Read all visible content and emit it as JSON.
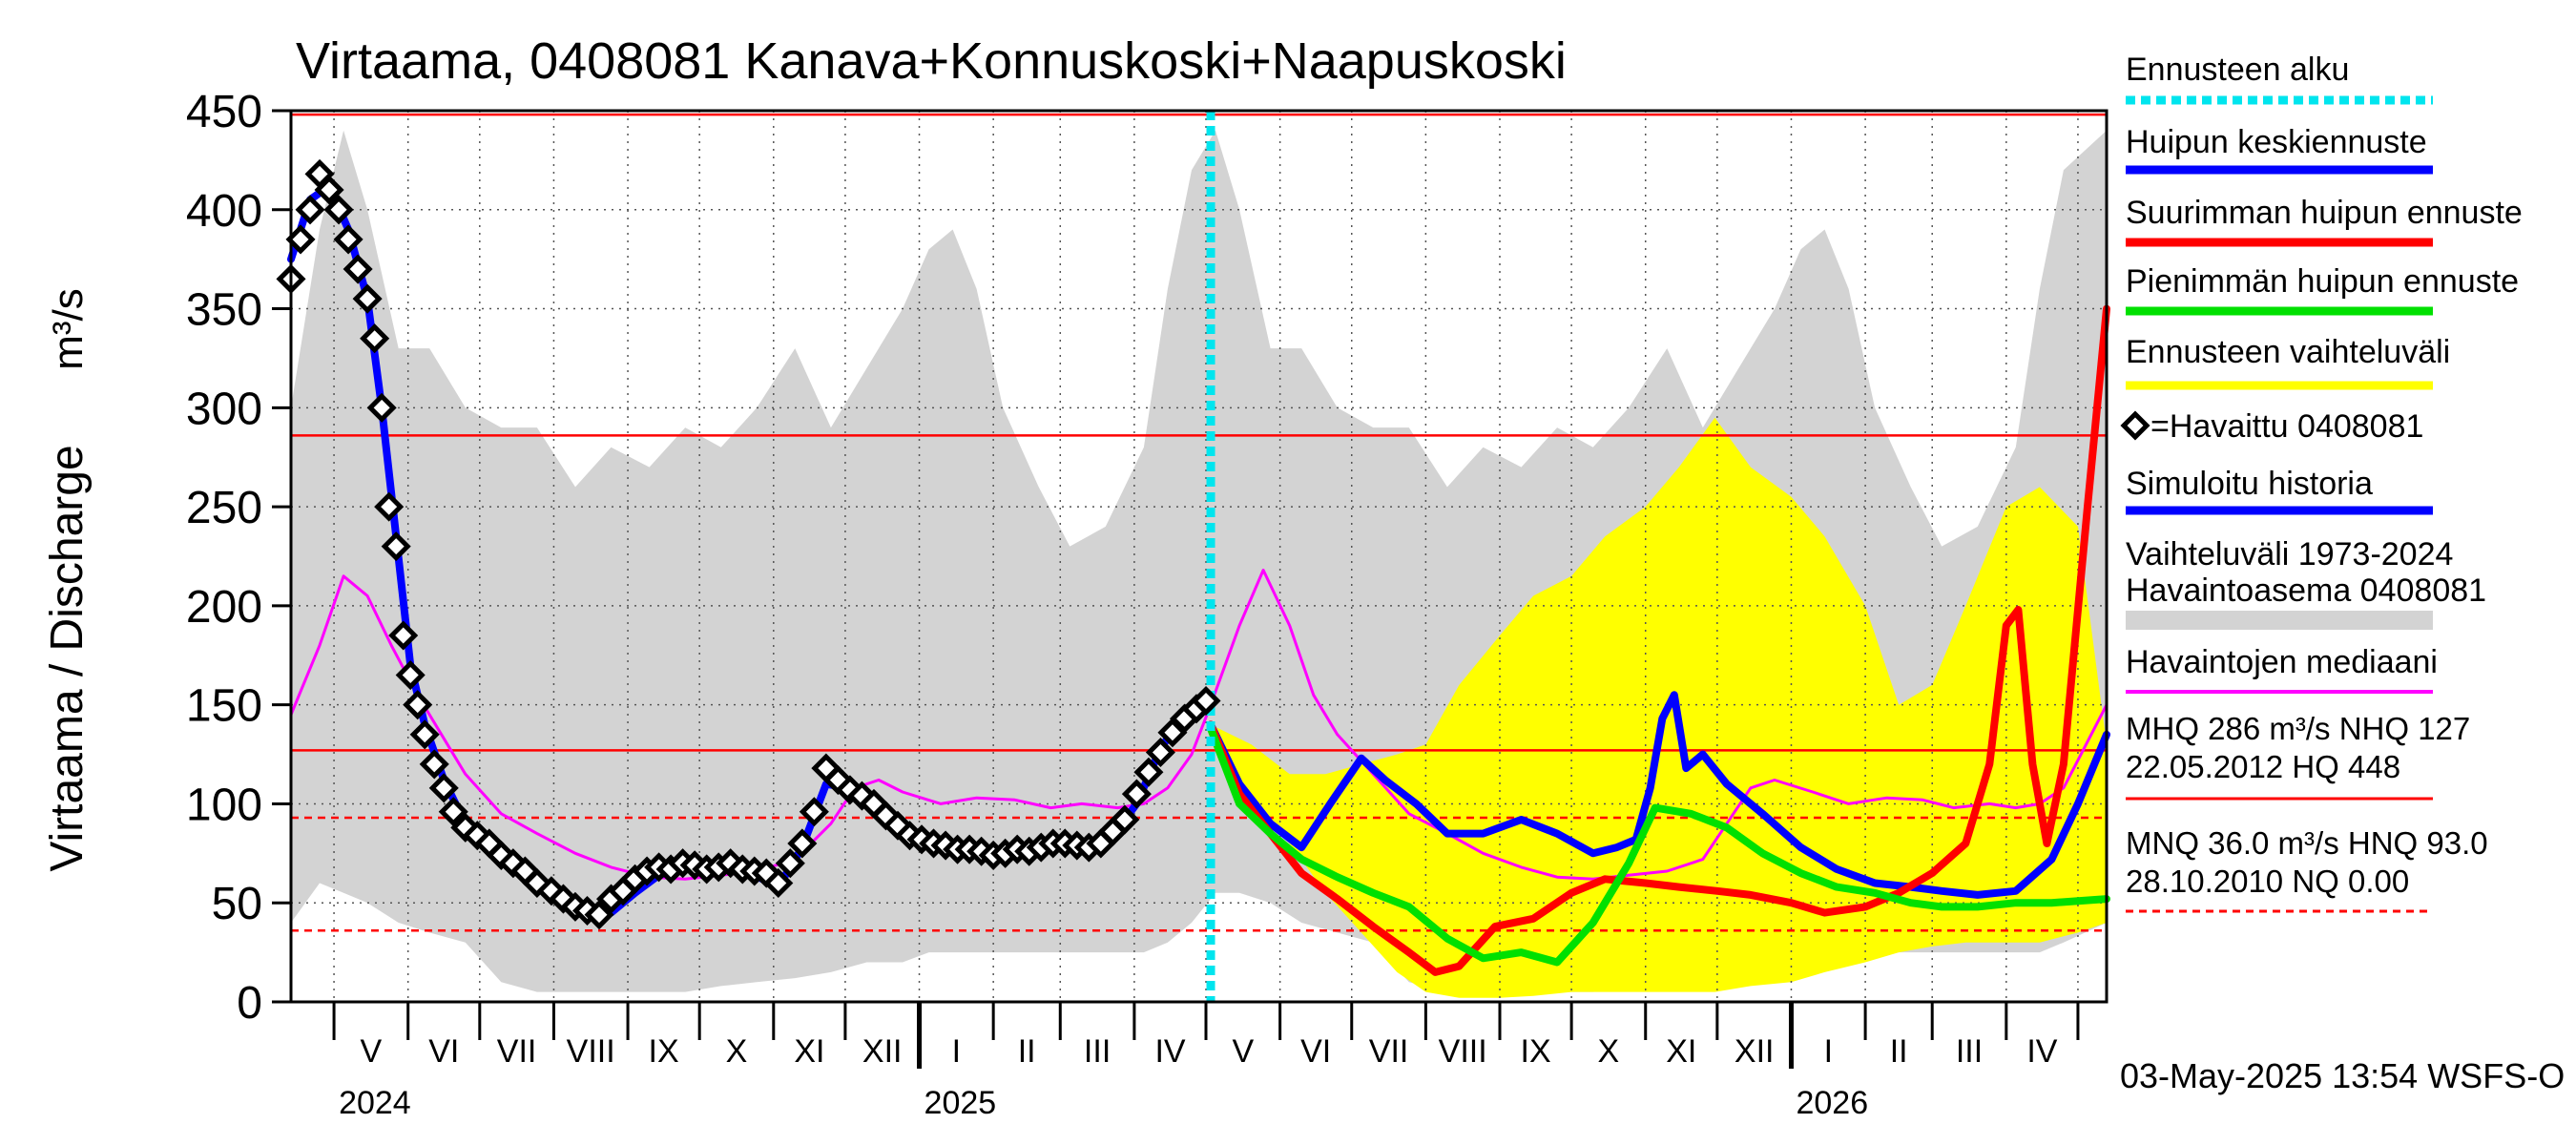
{
  "chart_data": {
    "type": "line",
    "title": "Virtaama, 0408081 Kanava+Konnuskoski+Naapuskoski",
    "ylabel": "Virtaama / Discharge",
    "yunit": "m³/s",
    "ylim": [
      0,
      450
    ],
    "yticks": [
      0,
      50,
      100,
      150,
      200,
      250,
      300,
      350,
      400,
      450
    ],
    "xlim": [
      "2024-04-13",
      "2026-05-13"
    ],
    "forecast_start": "2025-05-03",
    "month_labels": [
      "V",
      "VI",
      "VII",
      "VIII",
      "IX",
      "X",
      "XI",
      "XII",
      "I",
      "II",
      "III",
      "IV",
      "V",
      "VI",
      "VII",
      "VIII",
      "IX",
      "X",
      "XI",
      "XII",
      "I",
      "II",
      "III",
      "IV"
    ],
    "year_labels": [
      "2024",
      "2025",
      "2026"
    ],
    "timestamp": "03-May-2025 13:54 WSFS-O",
    "reference_lines": {
      "solid": [
        448,
        286,
        127
      ],
      "dashed": [
        93,
        36,
        0
      ]
    },
    "stats": {
      "line1": "MHQ  286 m³/s NHQ  127",
      "line2": "22.05.2012 HQ  448",
      "line3": "MNQ 36.0 m³/s HNQ 93.0",
      "line4": "28.10.2010 NQ 0.00"
    },
    "legend": [
      {
        "label": "Ennusteen alku",
        "color": "#00e5ee",
        "style": "dotted"
      },
      {
        "label": "Huipun keskiennuste",
        "color": "#0000ff",
        "style": "solid"
      },
      {
        "label": "Suurimman huipun ennuste",
        "color": "#ff0000",
        "style": "solid"
      },
      {
        "label": "Pienimmän huipun ennuste",
        "color": "#00e000",
        "style": "solid"
      },
      {
        "label": "Ennusteen vaihteluväli",
        "color": "#ffff00",
        "style": "solid"
      },
      {
        "label": "=Havaittu 0408081",
        "color": "#000000",
        "style": "diamond"
      },
      {
        "label": "Simuloitu historia",
        "color": "#0000ff",
        "style": "solid"
      },
      {
        "label": "Vaihteluväli 1973-2024",
        "label2": " Havaintoasema 0408081",
        "color": "#d3d3d3",
        "style": "band"
      },
      {
        "label": "Havaintojen mediaani",
        "color": "#ff00ff",
        "style": "solid"
      }
    ],
    "series": [
      {
        "name": "Vaihteluväli 1973-2024",
        "kind": "band",
        "color": "#d3d3d3",
        "x": [
          "2024-04-13",
          "2024-04-25",
          "2024-05-05",
          "2024-05-15",
          "2024-05-28",
          "2024-06-10",
          "2024-06-25",
          "2024-07-10",
          "2024-07-25",
          "2024-08-10",
          "2024-08-25",
          "2024-09-10",
          "2024-09-25",
          "2024-10-10",
          "2024-10-25",
          "2024-11-10",
          "2024-11-25",
          "2024-12-10",
          "2024-12-25",
          "2025-01-05",
          "2025-01-15",
          "2025-01-25",
          "2025-02-05",
          "2025-02-20",
          "2025-03-05",
          "2025-03-20",
          "2025-04-05",
          "2025-04-15",
          "2025-04-25",
          "2025-05-05",
          "2025-05-15",
          "2025-05-28",
          "2025-06-10",
          "2025-06-25",
          "2025-07-10",
          "2025-07-25",
          "2025-08-10",
          "2025-08-25",
          "2025-09-10",
          "2025-09-25",
          "2025-10-10",
          "2025-10-25",
          "2025-11-10",
          "2025-11-25",
          "2025-12-10",
          "2025-12-25",
          "2026-01-05",
          "2026-01-15",
          "2026-01-25",
          "2026-02-05",
          "2026-02-20",
          "2026-03-05",
          "2026-03-20",
          "2026-04-05",
          "2026-04-15",
          "2026-04-25",
          "2026-05-13"
        ],
        "low": [
          40,
          60,
          55,
          50,
          40,
          35,
          30,
          10,
          5,
          5,
          5,
          5,
          5,
          8,
          10,
          12,
          15,
          20,
          20,
          25,
          25,
          25,
          25,
          25,
          25,
          25,
          25,
          30,
          40,
          55,
          55,
          50,
          40,
          35,
          30,
          10,
          5,
          5,
          5,
          5,
          5,
          8,
          10,
          12,
          15,
          20,
          20,
          25,
          25,
          25,
          25,
          25,
          25,
          25,
          25,
          30,
          40
        ],
        "high": [
          300,
          390,
          440,
          400,
          330,
          330,
          300,
          290,
          290,
          260,
          280,
          270,
          290,
          280,
          300,
          330,
          290,
          320,
          350,
          380,
          390,
          360,
          300,
          260,
          230,
          240,
          280,
          360,
          420,
          440,
          400,
          330,
          330,
          300,
          290,
          290,
          260,
          280,
          270,
          290,
          280,
          300,
          330,
          290,
          320,
          350,
          380,
          390,
          360,
          300,
          260,
          230,
          240,
          280,
          360,
          420,
          440
        ]
      },
      {
        "name": "Ennusteen vaihteluväli",
        "kind": "band",
        "color": "#ffff00",
        "x": [
          "2025-05-03",
          "2025-05-20",
          "2025-06-05",
          "2025-06-20",
          "2025-07-05",
          "2025-07-20",
          "2025-08-01",
          "2025-08-15",
          "2025-09-01",
          "2025-09-15",
          "2025-10-01",
          "2025-10-15",
          "2025-11-01",
          "2025-11-15",
          "2025-11-30",
          "2025-12-15",
          "2026-01-01",
          "2026-01-15",
          "2026-02-01",
          "2026-02-15",
          "2026-03-01",
          "2026-03-15",
          "2026-04-01",
          "2026-04-15",
          "2026-05-01",
          "2026-05-13"
        ],
        "low": [
          135,
          100,
          80,
          55,
          35,
          15,
          5,
          2,
          2,
          3,
          5,
          5,
          5,
          5,
          5,
          8,
          10,
          15,
          20,
          25,
          28,
          30,
          30,
          30,
          35,
          40
        ],
        "high": [
          140,
          130,
          115,
          115,
          120,
          125,
          130,
          160,
          185,
          205,
          215,
          235,
          250,
          270,
          295,
          270,
          255,
          235,
          200,
          150,
          160,
          200,
          250,
          260,
          240,
          130
        ]
      },
      {
        "name": "Havaintojen mediaani",
        "kind": "line",
        "color": "#ff00ff",
        "x": [
          "2024-04-13",
          "2024-04-25",
          "2024-05-05",
          "2024-05-15",
          "2024-05-25",
          "2024-06-05",
          "2024-06-15",
          "2024-06-25",
          "2024-07-10",
          "2024-07-25",
          "2024-08-10",
          "2024-08-25",
          "2024-09-10",
          "2024-09-25",
          "2024-10-10",
          "2024-10-25",
          "2024-11-10",
          "2024-11-25",
          "2024-12-05",
          "2024-12-15",
          "2024-12-25",
          "2025-01-10",
          "2025-01-25",
          "2025-02-10",
          "2025-02-25",
          "2025-03-10",
          "2025-03-25",
          "2025-04-05",
          "2025-04-15",
          "2025-04-25",
          "2025-05-03",
          "2025-05-15",
          "2025-05-25",
          "2025-06-05",
          "2025-06-15",
          "2025-06-25",
          "2025-07-10",
          "2025-07-25",
          "2025-08-10",
          "2025-08-25",
          "2025-09-10",
          "2025-09-25",
          "2025-10-10",
          "2025-10-25",
          "2025-11-10",
          "2025-11-25",
          "2025-12-05",
          "2025-12-15",
          "2025-12-25",
          "2026-01-10",
          "2026-01-25",
          "2026-02-10",
          "2026-02-25",
          "2026-03-10",
          "2026-03-25",
          "2026-04-05",
          "2026-04-15",
          "2026-04-25",
          "2026-05-13"
        ],
        "y": [
          145,
          180,
          215,
          205,
          180,
          155,
          135,
          115,
          95,
          85,
          75,
          68,
          63,
          62,
          64,
          66,
          72,
          90,
          108,
          112,
          106,
          100,
          103,
          102,
          98,
          100,
          98,
          100,
          108,
          125,
          150,
          190,
          218,
          190,
          155,
          135,
          115,
          95,
          85,
          75,
          68,
          63,
          62,
          64,
          66,
          72,
          90,
          108,
          112,
          106,
          100,
          103,
          102,
          98,
          100,
          98,
          100,
          108,
          150
        ]
      },
      {
        "name": "Havaittu 0408081",
        "kind": "markers",
        "color": "#000000",
        "x": [
          "2024-04-13",
          "2024-04-17",
          "2024-04-21",
          "2024-04-25",
          "2024-04-29",
          "2024-05-03",
          "2024-05-07",
          "2024-05-11",
          "2024-05-15",
          "2024-05-18",
          "2024-05-21",
          "2024-05-24",
          "2024-05-27",
          "2024-05-30",
          "2024-06-02",
          "2024-06-05",
          "2024-06-08",
          "2024-06-12",
          "2024-06-16",
          "2024-06-20",
          "2024-06-25",
          "2024-06-30",
          "2024-07-05",
          "2024-07-10",
          "2024-07-15",
          "2024-07-20",
          "2024-07-25",
          "2024-07-31",
          "2024-08-05",
          "2024-08-10",
          "2024-08-15",
          "2024-08-20",
          "2024-08-25",
          "2024-08-30",
          "2024-09-04",
          "2024-09-09",
          "2024-09-14",
          "2024-09-19",
          "2024-09-24",
          "2024-09-29",
          "2024-10-04",
          "2024-10-09",
          "2024-10-14",
          "2024-10-19",
          "2024-10-24",
          "2024-10-29",
          "2024-11-03",
          "2024-11-08",
          "2024-11-13",
          "2024-11-18",
          "2024-11-23",
          "2024-11-28",
          "2024-12-03",
          "2024-12-08",
          "2024-12-13",
          "2024-12-18",
          "2024-12-23",
          "2024-12-28",
          "2025-01-02",
          "2025-01-07",
          "2025-01-12",
          "2025-01-17",
          "2025-01-22",
          "2025-01-27",
          "2025-02-01",
          "2025-02-06",
          "2025-02-11",
          "2025-02-16",
          "2025-02-21",
          "2025-02-26",
          "2025-03-03",
          "2025-03-08",
          "2025-03-13",
          "2025-03-18",
          "2025-03-23",
          "2025-03-28",
          "2025-04-02",
          "2025-04-07",
          "2025-04-12",
          "2025-04-17",
          "2025-04-22",
          "2025-04-27",
          "2025-05-01"
        ],
        "y": [
          365,
          385,
          400,
          418,
          410,
          400,
          385,
          370,
          355,
          335,
          300,
          250,
          230,
          185,
          165,
          150,
          135,
          120,
          108,
          96,
          88,
          84,
          80,
          74,
          70,
          66,
          60,
          56,
          52,
          48,
          46,
          44,
          52,
          56,
          62,
          66,
          68,
          67,
          70,
          69,
          67,
          68,
          70,
          67,
          66,
          65,
          60,
          70,
          80,
          96,
          118,
          112,
          107,
          104,
          100,
          94,
          89,
          84,
          82,
          80,
          79,
          77,
          77,
          76,
          74,
          75,
          77,
          76,
          78,
          80,
          80,
          79,
          78,
          80,
          86,
          92,
          105,
          116,
          126,
          136,
          143,
          148,
          152
        ]
      },
      {
        "name": "Simuloitu historia",
        "kind": "line",
        "color": "#0000ff",
        "x": [
          "2024-04-13",
          "2024-04-21",
          "2024-04-29",
          "2024-05-07",
          "2024-05-15",
          "2024-05-21",
          "2024-05-27",
          "2024-06-02",
          "2024-06-08",
          "2024-06-16",
          "2024-06-25",
          "2024-07-05",
          "2024-07-15",
          "2024-07-25",
          "2024-08-05",
          "2024-08-15",
          "2024-08-25",
          "2024-09-04",
          "2024-09-14",
          "2024-09-24",
          "2024-10-04",
          "2024-10-14",
          "2024-10-24",
          "2024-11-03",
          "2024-11-13",
          "2024-11-23",
          "2024-12-03",
          "2024-12-13",
          "2024-12-23",
          "2025-01-02",
          "2025-01-12",
          "2025-01-22",
          "2025-02-01",
          "2025-02-11",
          "2025-02-21",
          "2025-03-03",
          "2025-03-13",
          "2025-03-23",
          "2025-04-02",
          "2025-04-12",
          "2025-04-22",
          "2025-05-03"
        ],
        "y": [
          375,
          405,
          412,
          390,
          355,
          300,
          235,
          170,
          140,
          112,
          90,
          80,
          72,
          62,
          50,
          46,
          45,
          55,
          64,
          68,
          68,
          68,
          64,
          58,
          78,
          110,
          108,
          102,
          92,
          82,
          78,
          76,
          74,
          77,
          79,
          80,
          79,
          84,
          100,
          128,
          145,
          150
        ]
      },
      {
        "name": "Huipun keskiennuste",
        "kind": "line",
        "color": "#0000ff",
        "x": [
          "2025-05-03",
          "2025-05-15",
          "2025-05-28",
          "2025-06-10",
          "2025-06-22",
          "2025-07-05",
          "2025-07-15",
          "2025-07-28",
          "2025-08-10",
          "2025-08-25",
          "2025-09-10",
          "2025-09-25",
          "2025-10-10",
          "2025-10-20",
          "2025-10-28",
          "2025-11-03",
          "2025-11-08",
          "2025-11-13",
          "2025-11-18",
          "2025-11-25",
          "2025-12-05",
          "2025-12-20",
          "2026-01-05",
          "2026-01-20",
          "2026-02-05",
          "2026-02-20",
          "2026-03-05",
          "2026-03-20",
          "2026-04-05",
          "2026-04-20",
          "2026-05-01",
          "2026-05-13"
        ],
        "y": [
          140,
          110,
          90,
          78,
          100,
          123,
          112,
          100,
          85,
          85,
          92,
          85,
          75,
          78,
          82,
          108,
          143,
          155,
          118,
          125,
          110,
          95,
          78,
          67,
          60,
          58,
          56,
          54,
          56,
          72,
          100,
          135
        ]
      },
      {
        "name": "Suurimman huipun ennuste",
        "kind": "line",
        "color": "#ff0000",
        "x": [
          "2025-05-03",
          "2025-05-15",
          "2025-05-28",
          "2025-06-10",
          "2025-06-25",
          "2025-07-10",
          "2025-07-25",
          "2025-08-05",
          "2025-08-15",
          "2025-08-30",
          "2025-09-15",
          "2025-10-01",
          "2025-10-15",
          "2025-11-01",
          "2025-11-15",
          "2025-12-01",
          "2025-12-15",
          "2026-01-01",
          "2026-01-15",
          "2026-02-01",
          "2026-02-15",
          "2026-03-01",
          "2026-03-15",
          "2026-03-25",
          "2026-04-01",
          "2026-04-06",
          "2026-04-12",
          "2026-04-18",
          "2026-04-25",
          "2026-05-05",
          "2026-05-13"
        ],
        "y": [
          140,
          105,
          85,
          65,
          52,
          38,
          25,
          15,
          18,
          38,
          42,
          55,
          62,
          60,
          58,
          56,
          54,
          50,
          45,
          48,
          55,
          65,
          80,
          120,
          190,
          198,
          120,
          80,
          120,
          250,
          350
        ]
      },
      {
        "name": "Pienimmän huipun ennuste",
        "kind": "line",
        "color": "#00e000",
        "x": [
          "2025-05-03",
          "2025-05-15",
          "2025-05-28",
          "2025-06-10",
          "2025-06-25",
          "2025-07-10",
          "2025-07-25",
          "2025-08-10",
          "2025-08-25",
          "2025-09-10",
          "2025-09-25",
          "2025-10-10",
          "2025-10-25",
          "2025-11-05",
          "2025-11-20",
          "2025-12-05",
          "2025-12-20",
          "2026-01-05",
          "2026-01-20",
          "2026-02-05",
          "2026-02-20",
          "2026-03-05",
          "2026-03-20",
          "2026-04-05",
          "2026-04-20",
          "2026-05-13"
        ],
        "y": [
          138,
          100,
          85,
          72,
          63,
          55,
          48,
          32,
          22,
          25,
          20,
          40,
          70,
          98,
          95,
          88,
          75,
          65,
          58,
          55,
          50,
          48,
          48,
          50,
          50,
          52
        ]
      }
    ]
  }
}
